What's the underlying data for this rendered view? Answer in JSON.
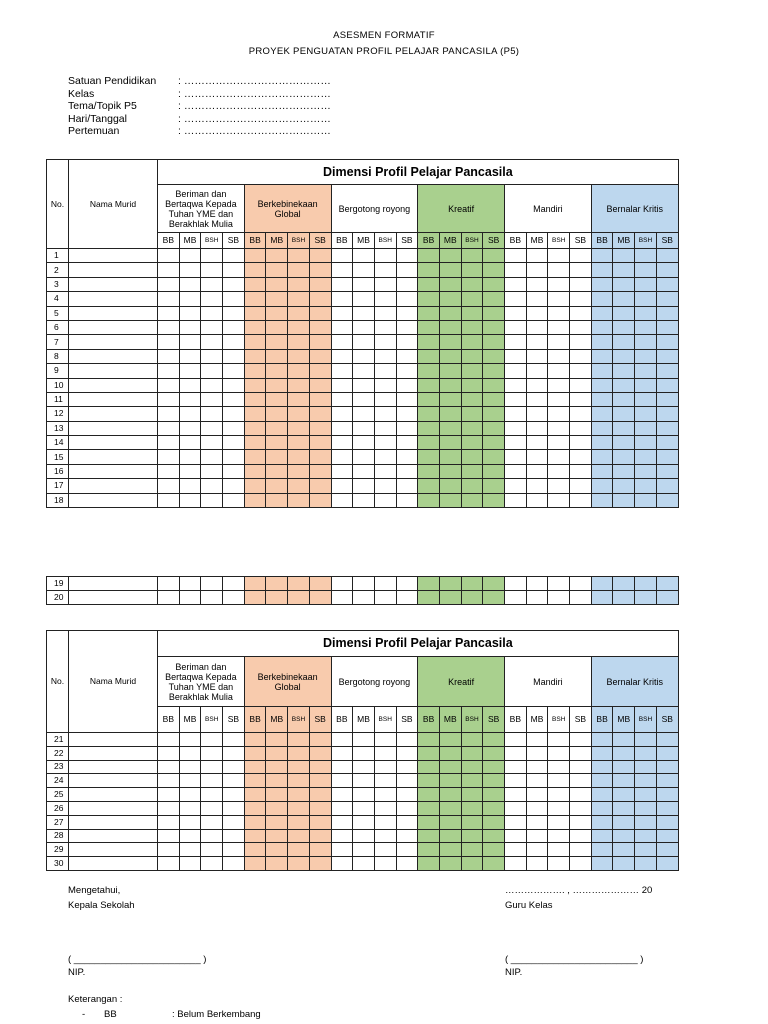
{
  "title": [
    "ASESMEN FORMATIF",
    "PROYEK PENGUATAN PROFIL PELAJAR PANCASILA (P5)"
  ],
  "info": [
    {
      "label": "Satuan Pendidikan",
      "value": ": ……………………………………"
    },
    {
      "label": "Kelas",
      "value": ": ……………………………………"
    },
    {
      "label": "Tema/Topik P5",
      "value": ": ……………………………………"
    },
    {
      "label": "Hari/Tanggal",
      "value": ": ……………………………………"
    },
    {
      "label": "Pertemuan",
      "value": ": ……………………………………"
    }
  ],
  "table": {
    "no_header": "No.",
    "name_header": "Nama Murid",
    "dimension_header": "Dimensi Profil Pelajar Pancasila",
    "dimensions": [
      {
        "label": "Beriman dan Bertaqwa Kepada Tuhan YME dan Berakhlak Mulia",
        "color": "#ffffff"
      },
      {
        "label": "Berkebinekaan Global",
        "color": "#f8cbad"
      },
      {
        "label": "Bergotong royong",
        "color": "#ffffff"
      },
      {
        "label": "Kreatif",
        "color": "#a9d08e"
      },
      {
        "label": "Mandiri",
        "color": "#ffffff"
      },
      {
        "label": "Bernalar Kritis",
        "color": "#bdd7ee"
      }
    ],
    "levels": [
      "BB",
      "MB",
      "BSH",
      "SB"
    ],
    "rows_page1": [
      "1",
      "2",
      "3",
      "4",
      "5",
      "6",
      "7",
      "8",
      "9",
      "10",
      "11",
      "12",
      "13",
      "14",
      "15",
      "16",
      "17",
      "18"
    ],
    "rows_page2": [
      "19",
      "20"
    ],
    "rows_page3": [
      "21",
      "22",
      "23",
      "24",
      "25",
      "26",
      "27",
      "28",
      "29",
      "30"
    ]
  },
  "footer": {
    "known": "Mengetahui,",
    "principal": "Kepala Sekolah",
    "date_line": "………………. , ………………… 20",
    "teacher": "Guru Kelas",
    "sign_left": "( ________________________ )",
    "sign_right": "( ________________________ )",
    "nip_left": "NIP.",
    "nip_right": "NIP.",
    "legend_title": "Keterangan :",
    "legend": [
      {
        "bullet": "-",
        "code": "BB",
        "desc": ": Belum Berkembang"
      }
    ]
  }
}
